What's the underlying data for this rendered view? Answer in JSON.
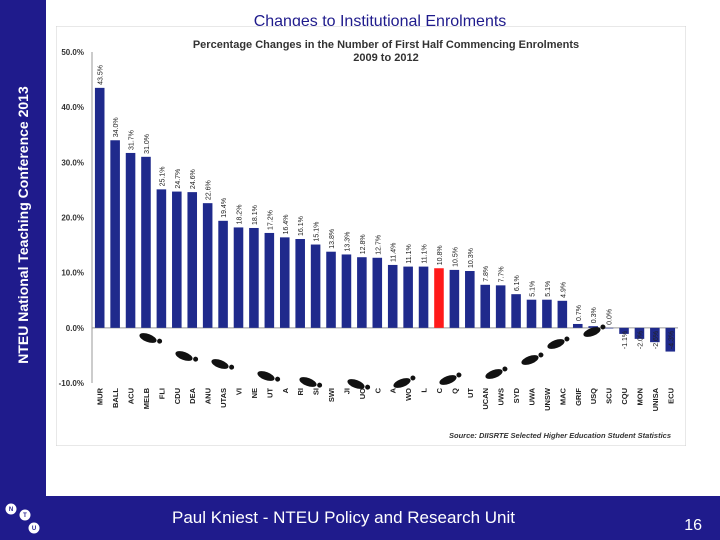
{
  "slide": {
    "title": "Changes to Institutional Enrolments",
    "side_label": "NTEU National Teaching Conference 2013",
    "footer": "Paul Kniest  - NTEU Policy and Research Unit",
    "page_number": "16"
  },
  "colors": {
    "band": "#1f1b8c",
    "bar": "#1f2a8c",
    "highlight_bar": "#ff1a1a",
    "chart_bg": "#ffffff"
  },
  "icons": [
    "footprint-icon",
    "ntu-logo-icon"
  ],
  "chart_data": {
    "type": "bar",
    "title": "Percentage Changes in the Number of First Half Commencing Enrolments",
    "subtitle": "2009 to 2012",
    "source": "Source: DIISRTE Selected Higher Education Student Statistics",
    "xlabel": "",
    "ylabel": "",
    "ylim": [
      -10,
      50
    ],
    "yticks": [
      -10,
      0,
      10,
      20,
      30,
      40,
      50
    ],
    "ytick_labels": [
      "-10.0%",
      "0.0%",
      "10.0%",
      "20.0%",
      "30.0%",
      "40.0%",
      "50.0%"
    ],
    "grid": false,
    "highlight_index": 22,
    "categories": [
      "MUR",
      "BALL",
      "ACU",
      "MELB",
      "FLI",
      "CDU",
      "DEA",
      "ANU",
      "UTAS",
      "VI",
      "NE",
      "UT",
      "A",
      "RI",
      "SI",
      "SWI",
      "JI",
      "UO",
      "C",
      "A",
      "WO",
      "L",
      "C",
      "Q",
      "UT",
      "UCAN",
      "UWS",
      "SYD",
      "UWA",
      "UNSW",
      "MAC",
      "GRIF",
      "USQ",
      "SCU",
      "CQU",
      "MON",
      "UNISA",
      "ECU"
    ],
    "values": [
      43.5,
      34.0,
      31.7,
      31.0,
      25.1,
      24.7,
      24.6,
      22.6,
      19.4,
      18.2,
      18.1,
      17.2,
      16.4,
      16.1,
      15.1,
      13.8,
      13.3,
      12.8,
      12.7,
      11.4,
      11.1,
      11.1,
      10.8,
      10.5,
      10.3,
      7.8,
      7.7,
      6.1,
      5.1,
      5.1,
      4.9,
      0.7,
      0.3,
      0.0,
      -1.1,
      -2.0,
      -2.6,
      -4.3
    ],
    "data_labels": [
      "43.5%",
      "34.0%",
      "31.7%",
      "31.0%",
      "25.1%",
      "24.7%",
      "24.6%",
      "22.6%",
      "19.4%",
      "18.2%",
      "18.1%",
      "17.2%",
      "16.4%",
      "16.1%",
      "15.1%",
      "13.8%",
      "13.3%",
      "12.8%",
      "12.7%",
      "11.4%",
      "11.1%",
      "11.1%",
      "10.8%",
      "10.5%",
      "10.3%",
      "7.8%",
      "7.7%",
      "6.1%",
      "5.1%",
      "5.1%",
      "4.9%",
      "0.7%",
      "0.3%",
      "0.0%",
      "-1.1%",
      "-2.0%",
      "-2.6%",
      "-4.3%"
    ]
  }
}
